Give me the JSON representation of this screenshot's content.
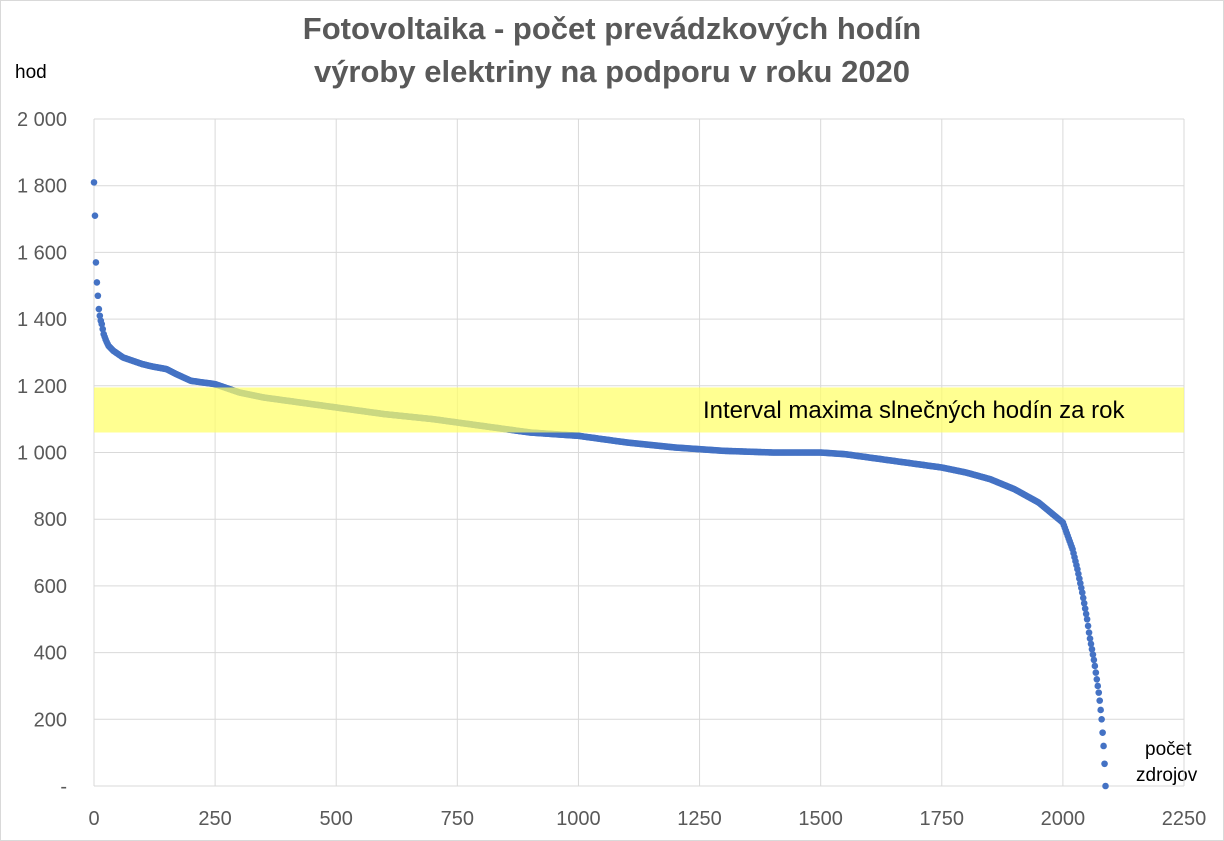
{
  "chart_data": {
    "type": "scatter",
    "title": [
      "Fotovoltaika - počet prevádzkových hodín",
      "výroby elektriny na podporu v roku 2020"
    ],
    "ylabel": "hod",
    "xlabel": [
      "počet",
      "zdrojov"
    ],
    "xlim": [
      0,
      2250
    ],
    "ylim": [
      0,
      2000
    ],
    "x_ticks": [
      0,
      250,
      500,
      750,
      1000,
      1250,
      1500,
      1750,
      2000,
      2250
    ],
    "x_tick_labels": [
      "0",
      "250",
      "500",
      "750",
      "1000",
      "1250",
      "1500",
      "1750",
      "2000",
      "2250"
    ],
    "y_ticks": [
      0,
      200,
      400,
      600,
      800,
      1000,
      1200,
      1400,
      1600,
      1800,
      2000
    ],
    "y_tick_labels": [
      "-",
      "200",
      "400",
      "600",
      "800",
      "1 000",
      "1 200",
      "1 400",
      "1 600",
      "1 800",
      "2 000"
    ],
    "grid": {
      "x": true,
      "y": true
    },
    "series": [
      {
        "color": "#4472c4",
        "profile_x": [
          0,
          1,
          2,
          3,
          4,
          5,
          6,
          7,
          8,
          9,
          10,
          12,
          14,
          16,
          18,
          20,
          25,
          30,
          40,
          50,
          60,
          80,
          100,
          120,
          150,
          170,
          200,
          250,
          300,
          350,
          400,
          500,
          600,
          700,
          800,
          900,
          1000,
          1100,
          1200,
          1300,
          1400,
          1500,
          1550,
          1600,
          1650,
          1700,
          1750,
          1800,
          1850,
          1900,
          1950,
          2000,
          2020,
          2030,
          2040,
          2050,
          2055,
          2060,
          2065,
          2070,
          2075,
          2080,
          2085,
          2088
        ],
        "profile_y": [
          1810,
          1780,
          1710,
          1605,
          1570,
          1525,
          1510,
          1490,
          1470,
          1450,
          1430,
          1410,
          1395,
          1385,
          1370,
          1355,
          1335,
          1320,
          1305,
          1295,
          1285,
          1275,
          1265,
          1258,
          1250,
          1235,
          1215,
          1205,
          1180,
          1165,
          1155,
          1135,
          1115,
          1100,
          1080,
          1060,
          1050,
          1030,
          1015,
          1005,
          1000,
          1000,
          995,
          985,
          975,
          965,
          955,
          940,
          920,
          890,
          850,
          790,
          710,
          650,
          580,
          500,
          450,
          410,
          370,
          320,
          270,
          200,
          100,
          0
        ],
        "n_points": 2088
      }
    ],
    "annotations": [
      {
        "type": "band",
        "y_range": [
          1060,
          1195
        ],
        "color": "#ffff66",
        "label": "Interval maxima slnečných hodín za rok"
      }
    ]
  }
}
